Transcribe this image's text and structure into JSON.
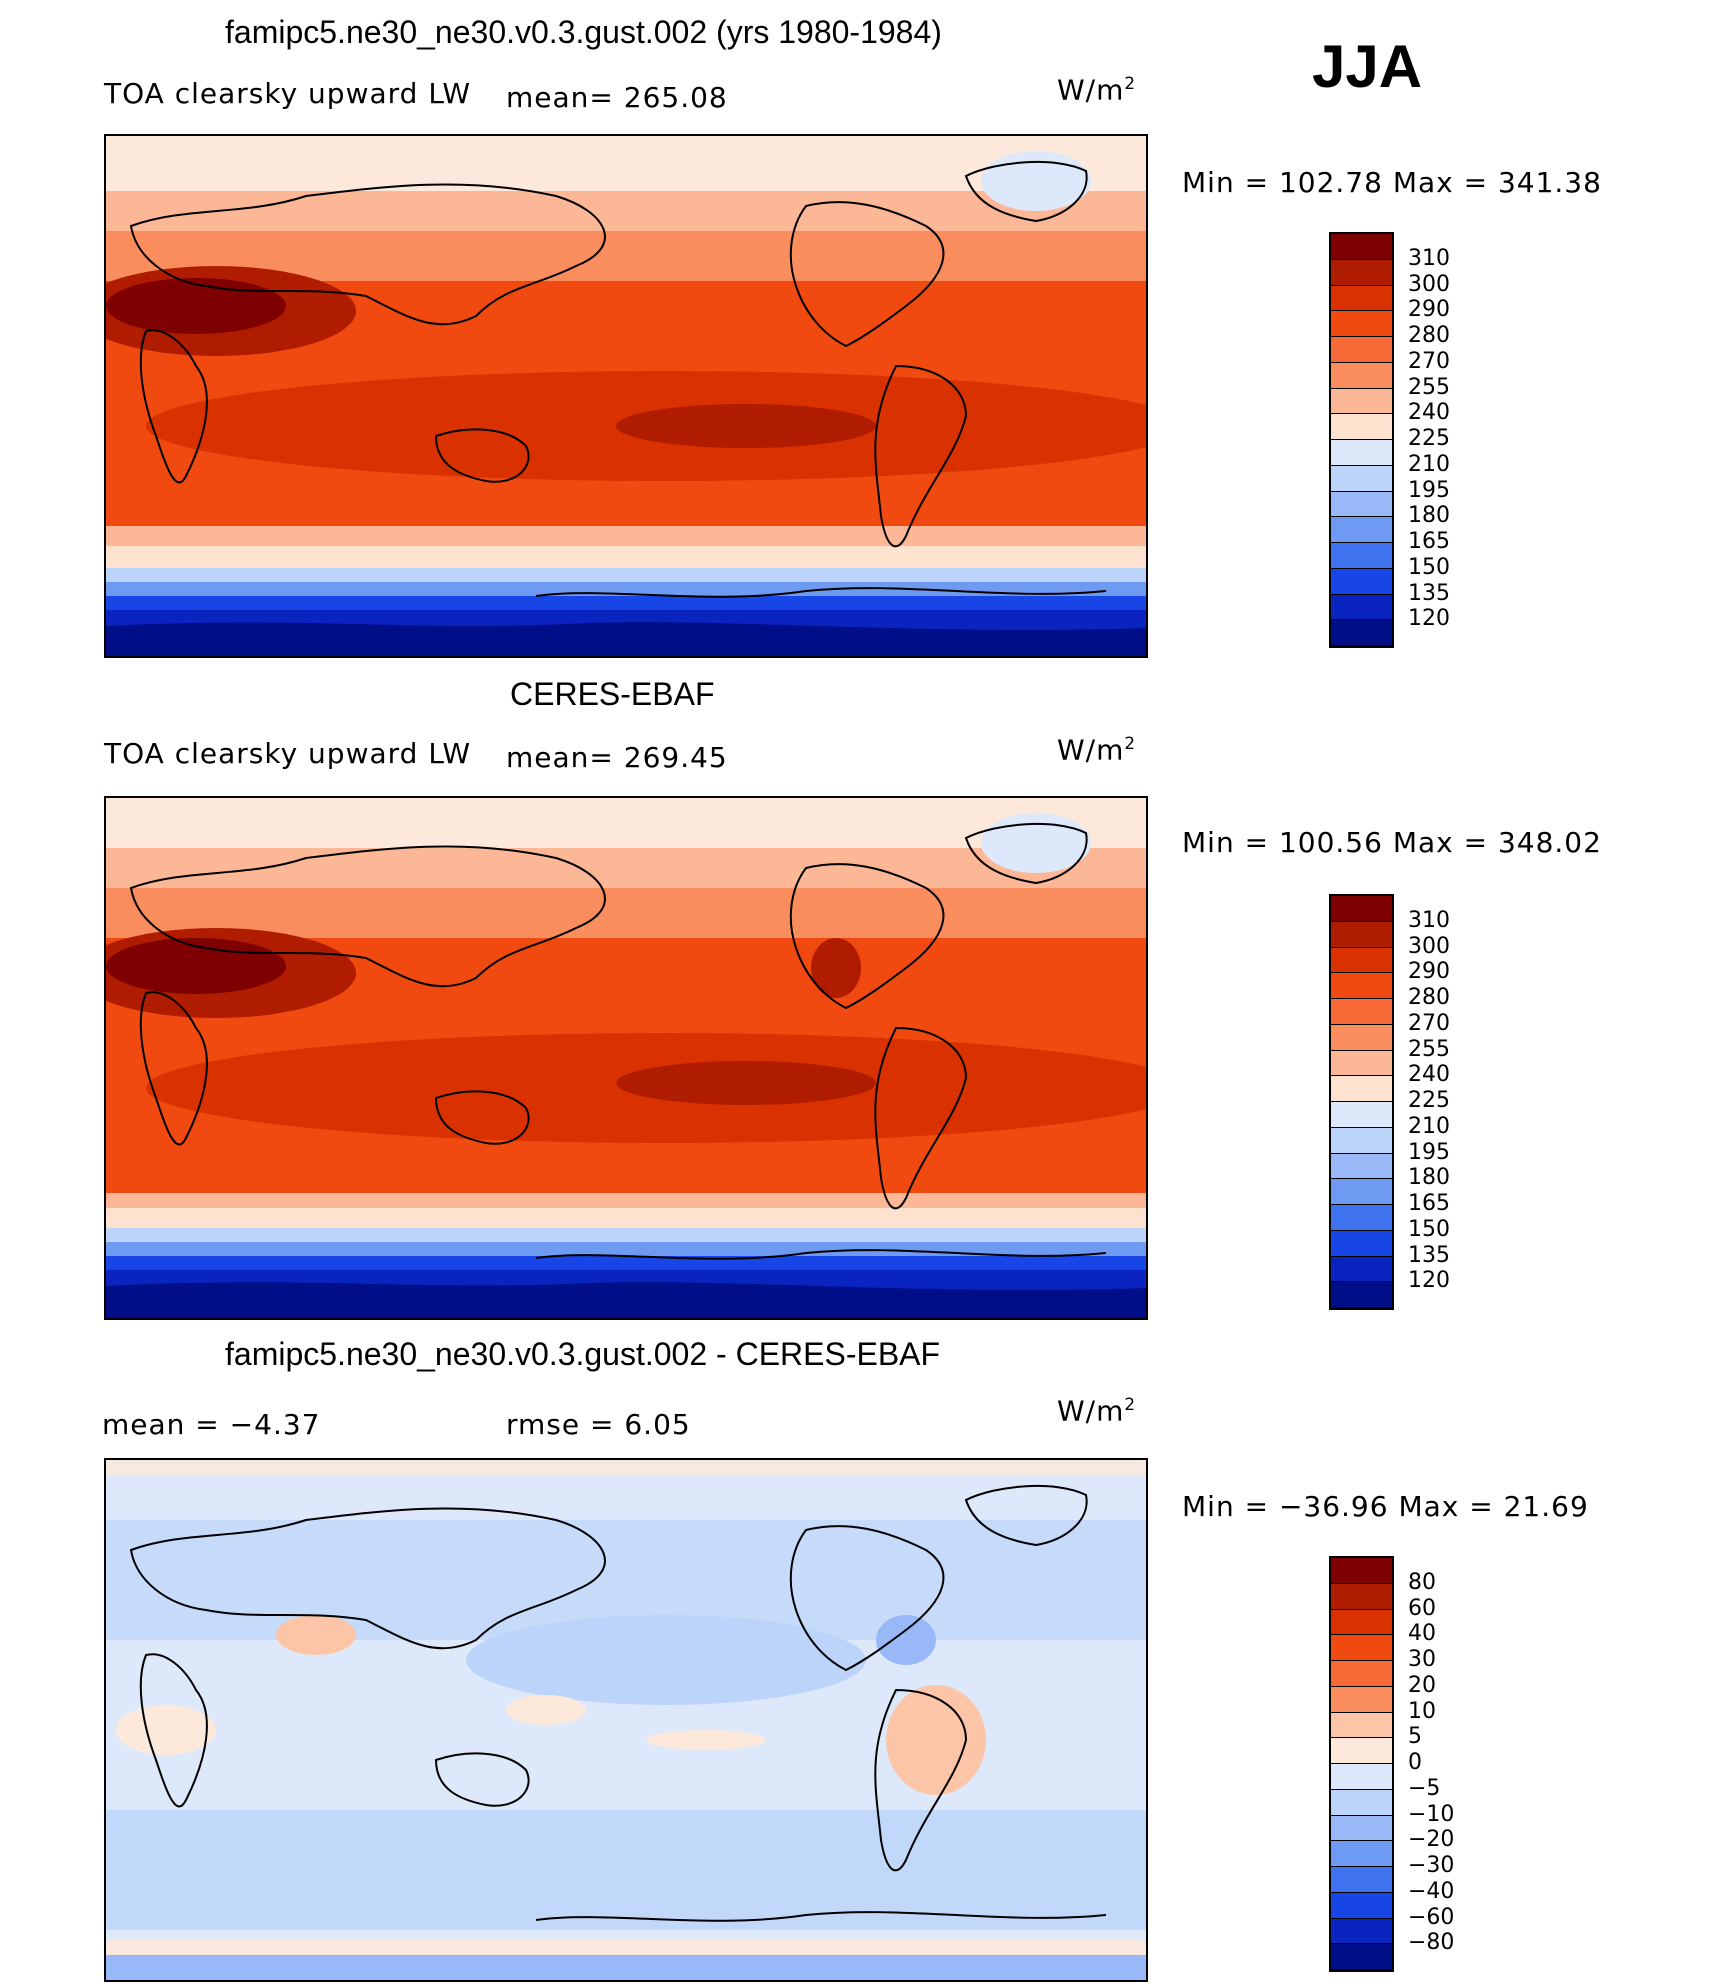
{
  "season": "JJA",
  "units_base": "W/m",
  "units_exp": "2",
  "panels": [
    {
      "title": "famipc5.ne30_ne30.v0.3.gust.002 (yrs 1980-1984)",
      "left_label": "TOA clearsky upward LW",
      "stat": "mean=  265.08",
      "min_max": "Min  =  102.78  Max  =  341.38",
      "kind": "field"
    },
    {
      "title": "CERES-EBAF",
      "left_label": "TOA clearsky upward LW",
      "stat": "mean=  269.45",
      "min_max": "Min  =  100.56  Max  =  348.02",
      "kind": "field"
    },
    {
      "title": "famipc5.ne30_ne30.v0.3.gust.002 - CERES-EBAF",
      "left_label": "mean  =    −4.37",
      "stat": "rmse  =     6.05",
      "min_max": "Min  =  −36.96  Max  =    21.69",
      "kind": "diff"
    }
  ],
  "colorbar_field": {
    "labels": [
      "310",
      "300",
      "290",
      "280",
      "270",
      "255",
      "240",
      "225",
      "210",
      "195",
      "180",
      "165",
      "150",
      "135",
      "120"
    ],
    "colors": [
      "#7f0000",
      "#b01c00",
      "#d93200",
      "#f04a10",
      "#f76a38",
      "#fa8d5e",
      "#fcb797",
      "#fde2cf",
      "#dde9fa",
      "#bcd3fa",
      "#98b8f7",
      "#6f9af2",
      "#3f72ee",
      "#1846e6",
      "#0a24c0",
      "#000f88"
    ]
  },
  "colorbar_diff": {
    "labels": [
      "80",
      "60",
      "40",
      "30",
      "20",
      "10",
      "5",
      "0",
      "−5",
      "−10",
      "−20",
      "−30",
      "−40",
      "−60",
      "−80"
    ],
    "colors": [
      "#7f0000",
      "#b01c00",
      "#d93200",
      "#f04a10",
      "#f76a38",
      "#fa8d5e",
      "#fcc5a8",
      "#fde9dc",
      "#dde9fa",
      "#bcd3fa",
      "#98b8f7",
      "#6f9af2",
      "#3f72ee",
      "#1846e6",
      "#0a24c0",
      "#000f88"
    ]
  }
}
